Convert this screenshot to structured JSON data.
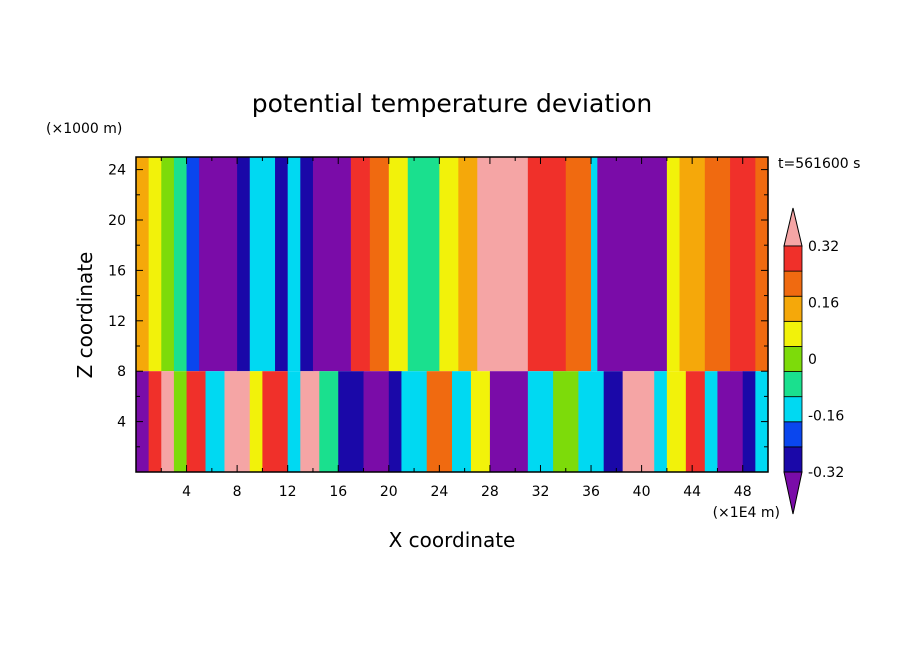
{
  "chart_data": {
    "type": "heatmap",
    "title": "potential temperature deviation",
    "xlabel": "X coordinate",
    "ylabel": "Z coordinate",
    "x_unit": "(×1E4 m)",
    "y_unit": "(×1000 m)",
    "time_label": "t=561600 s",
    "xlim": [
      0,
      50
    ],
    "ylim": [
      0,
      25
    ],
    "x_ticks": [
      4,
      8,
      12,
      16,
      20,
      24,
      28,
      32,
      36,
      40,
      44,
      48
    ],
    "y_ticks": [
      4,
      8,
      12,
      16,
      20,
      24
    ],
    "colorbar": {
      "levels": [
        -0.4,
        -0.32,
        -0.24,
        -0.16,
        -0.08,
        0,
        0.08,
        0.16,
        0.24,
        0.32,
        0.4
      ],
      "labels": [
        "-0.32",
        "-0.16",
        "0",
        "0.16",
        "0.32"
      ],
      "label_values": [
        -0.32,
        -0.16,
        0,
        0.16,
        0.32
      ],
      "colors": [
        "#7a0ca8",
        "#1a08a8",
        "#0a46ee",
        "#00d9f2",
        "#1ae08e",
        "#7ddb0a",
        "#f2f20a",
        "#f5a80a",
        "#f06a10",
        "#f0302a",
        "#f5a5a5"
      ],
      "extend": "both"
    },
    "upper_layer": {
      "z_range": [
        8,
        25
      ],
      "columns": [
        {
          "x": 0.0,
          "level": 7
        },
        {
          "x": 1.0,
          "level": 6
        },
        {
          "x": 2.0,
          "level": 5
        },
        {
          "x": 3.0,
          "level": 4
        },
        {
          "x": 4.0,
          "level": 2
        },
        {
          "x": 5.0,
          "level": 0
        },
        {
          "x": 8.0,
          "level": 1
        },
        {
          "x": 9.0,
          "level": 3
        },
        {
          "x": 11.0,
          "level": 1
        },
        {
          "x": 12.0,
          "level": 3
        },
        {
          "x": 13.0,
          "level": 1
        },
        {
          "x": 14.0,
          "level": 0
        },
        {
          "x": 17.0,
          "level": 9
        },
        {
          "x": 18.5,
          "level": 8
        },
        {
          "x": 20.0,
          "level": 6
        },
        {
          "x": 21.5,
          "level": 4
        },
        {
          "x": 24.0,
          "level": 6
        },
        {
          "x": 25.5,
          "level": 7
        },
        {
          "x": 27.0,
          "level": 10
        },
        {
          "x": 31.0,
          "level": 9
        },
        {
          "x": 34.0,
          "level": 8
        },
        {
          "x": 36.0,
          "level": 3
        },
        {
          "x": 36.5,
          "level": 0
        },
        {
          "x": 42.0,
          "level": 6
        },
        {
          "x": 43.0,
          "level": 7
        },
        {
          "x": 45.0,
          "level": 8
        },
        {
          "x": 47.0,
          "level": 9
        },
        {
          "x": 49.0,
          "level": 8
        }
      ]
    },
    "lower_layer": {
      "z_range": [
        0,
        8
      ],
      "columns": [
        {
          "x": 0.0,
          "level": 0
        },
        {
          "x": 1.0,
          "level": 9
        },
        {
          "x": 2.0,
          "level": 10
        },
        {
          "x": 3.0,
          "level": 5
        },
        {
          "x": 4.0,
          "level": 9
        },
        {
          "x": 5.5,
          "level": 3
        },
        {
          "x": 7.0,
          "level": 10
        },
        {
          "x": 9.0,
          "level": 6
        },
        {
          "x": 10.0,
          "level": 9
        },
        {
          "x": 12.0,
          "level": 3
        },
        {
          "x": 13.0,
          "level": 10
        },
        {
          "x": 14.5,
          "level": 4
        },
        {
          "x": 16.0,
          "level": 1
        },
        {
          "x": 18.0,
          "level": 0
        },
        {
          "x": 20.0,
          "level": 1
        },
        {
          "x": 21.0,
          "level": 3
        },
        {
          "x": 23.0,
          "level": 8
        },
        {
          "x": 25.0,
          "level": 3
        },
        {
          "x": 26.5,
          "level": 6
        },
        {
          "x": 28.0,
          "level": 0
        },
        {
          "x": 31.0,
          "level": 3
        },
        {
          "x": 33.0,
          "level": 5
        },
        {
          "x": 35.0,
          "level": 3
        },
        {
          "x": 37.0,
          "level": 1
        },
        {
          "x": 38.5,
          "level": 10
        },
        {
          "x": 41.0,
          "level": 3
        },
        {
          "x": 42.0,
          "level": 6
        },
        {
          "x": 43.5,
          "level": 9
        },
        {
          "x": 45.0,
          "level": 3
        },
        {
          "x": 46.0,
          "level": 0
        },
        {
          "x": 48.0,
          "level": 1
        },
        {
          "x": 49.0,
          "level": 3
        }
      ]
    }
  }
}
